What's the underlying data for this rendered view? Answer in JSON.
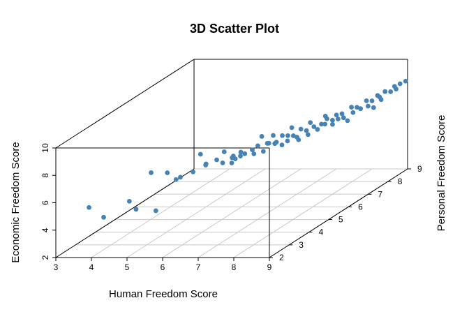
{
  "chart_data": {
    "type": "scatter",
    "title": "3D Scatter Plot",
    "xlabel": "Human Freedom Score",
    "ylabel": "Personal Freedom Score",
    "zlabel": "Economic Freedom Score",
    "xlim": [
      3,
      9
    ],
    "ylim": [
      2,
      9
    ],
    "zlim": [
      2,
      10
    ],
    "x_ticks": [
      "3",
      "4",
      "5",
      "6",
      "7",
      "8",
      "9"
    ],
    "y_ticks": [
      "2",
      "3",
      "4",
      "5",
      "6",
      "7",
      "8",
      "9"
    ],
    "z_ticks": [
      "2",
      "4",
      "6",
      "8",
      "10"
    ],
    "grid": true,
    "point_color": "#4682B4",
    "points": [
      [
        3.6,
        2.6,
        5.1
      ],
      [
        3.9,
        2.8,
        4.2
      ],
      [
        4.4,
        3.2,
        5.0
      ],
      [
        4.7,
        3.0,
        4.6
      ],
      [
        5.2,
        3.1,
        4.4
      ],
      [
        4.9,
        3.4,
        6.9
      ],
      [
        5.3,
        3.5,
        6.8
      ],
      [
        5.5,
        3.8,
        6.2
      ],
      [
        5.6,
        3.4,
        6.4
      ],
      [
        5.8,
        3.9,
        6.5
      ],
      [
        6.0,
        4.2,
        6.8
      ],
      [
        6.1,
        4.0,
        6.9
      ],
      [
        6.3,
        4.2,
        7.1
      ],
      [
        6.3,
        4.5,
        6.6
      ],
      [
        6.4,
        4.8,
        6.7
      ],
      [
        6.5,
        4.6,
        6.5
      ],
      [
        6.6,
        4.6,
        6.8
      ],
      [
        6.6,
        4.5,
        7.1
      ],
      [
        6.7,
        4.9,
        6.9
      ],
      [
        6.7,
        4.7,
        7.2
      ],
      [
        6.8,
        5.1,
        7.0
      ],
      [
        6.8,
        4.5,
        7.1
      ],
      [
        6.9,
        5.0,
        6.8
      ],
      [
        6.9,
        5.2,
        7.2
      ],
      [
        7.0,
        5.5,
        7.1
      ],
      [
        7.0,
        5.3,
        6.7
      ],
      [
        7.1,
        5.4,
        7.2
      ],
      [
        7.1,
        5.7,
        6.9
      ],
      [
        7.2,
        5.6,
        7.1
      ],
      [
        7.2,
        5.9,
        7.3
      ],
      [
        7.3,
        5.7,
        6.8
      ],
      [
        7.3,
        6.0,
        7.2
      ],
      [
        7.4,
        5.8,
        7.0
      ],
      [
        7.4,
        6.1,
        7.1
      ],
      [
        7.5,
        6.1,
        7.0
      ],
      [
        7.5,
        6.3,
        7.4
      ],
      [
        7.6,
        6.4,
        7.2
      ],
      [
        7.6,
        6.0,
        6.9
      ],
      [
        7.7,
        6.6,
        7.3
      ],
      [
        7.7,
        6.3,
        7.0
      ],
      [
        7.8,
        6.6,
        7.1
      ],
      [
        7.8,
        6.8,
        7.3
      ],
      [
        7.9,
        6.8,
        7.3
      ],
      [
        7.9,
        6.9,
        7.6
      ],
      [
        8.0,
        7.0,
        7.4
      ],
      [
        8.0,
        7.2,
        7.6
      ],
      [
        8.0,
        7.0,
        7.1
      ],
      [
        8.1,
        7.3,
        7.6
      ],
      [
        8.1,
        7.1,
        7.4
      ],
      [
        8.2,
        7.2,
        7.4
      ],
      [
        8.2,
        7.6,
        7.8
      ],
      [
        8.3,
        7.7,
        7.7
      ],
      [
        8.3,
        7.5,
        7.5
      ],
      [
        8.4,
        7.7,
        7.6
      ],
      [
        8.4,
        8.0,
        7.9
      ],
      [
        8.5,
        8.1,
        7.8
      ],
      [
        8.5,
        7.9,
        7.6
      ],
      [
        8.6,
        8.2,
        8.1
      ],
      [
        8.6,
        8.3,
        7.9
      ],
      [
        8.7,
        8.4,
        8.2
      ],
      [
        8.7,
        8.2,
        7.8
      ],
      [
        8.8,
        8.5,
        8.1
      ],
      [
        8.8,
        8.7,
        8.3
      ],
      [
        8.9,
        8.8,
        8.4
      ],
      [
        8.9,
        8.6,
        8.2
      ],
      [
        9.0,
        8.9,
        8.5
      ],
      [
        8.2,
        7.4,
        7.0
      ],
      [
        7.6,
        6.6,
        7.6
      ],
      [
        6.4,
        4.4,
        7.5
      ],
      [
        5.9,
        4.1,
        7.6
      ],
      [
        6.9,
        5.4,
        7.7
      ],
      [
        7.3,
        6.2,
        7.6
      ],
      [
        8.6,
        8.0,
        7.4
      ],
      [
        7.0,
        5.8,
        7.4
      ],
      [
        7.8,
        7.0,
        7.7
      ]
    ]
  }
}
